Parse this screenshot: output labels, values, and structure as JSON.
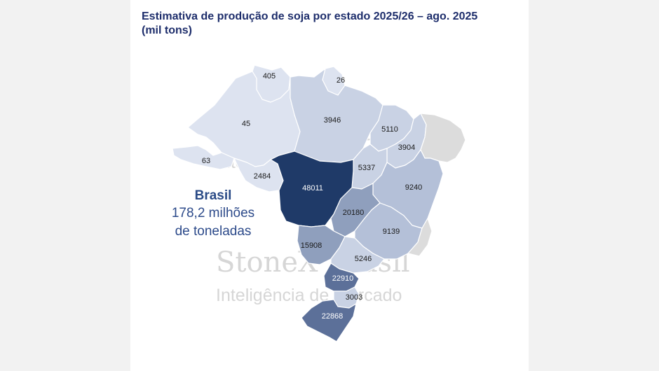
{
  "title": {
    "line1": "Estimativa de produção de soja por estado 2025/26 – ago. 2025",
    "line2": "(mil tons)"
  },
  "summary": {
    "country": "Brasil",
    "line1": "178,2 milhões",
    "line2": "de toneladas"
  },
  "watermark": {
    "brand": "StoneX Brasil",
    "subtitle": "Inteligência de Mercado"
  },
  "colors": {
    "darkest": "#1f3a68",
    "dark": "#5c7099",
    "medium": "#8f9fbd",
    "light": "#b4c0d8",
    "lighter": "#c9d2e4",
    "lightest": "#dde3f0",
    "no_data": "#dcdcdc",
    "title": "#1d2d6b"
  },
  "states": {
    "roraima": "405",
    "amapa": "26",
    "amazonas": "45",
    "para": "3946",
    "maranhao": "5110",
    "piaui": "3904",
    "acre": "63",
    "rondonia": "2484",
    "tocantins": "5337",
    "mato_grosso": "48011",
    "bahia": "9240",
    "goias": "20180",
    "minas_gerais": "9139",
    "mato_grosso_do_sul": "15908",
    "sao_paulo": "5246",
    "parana": "22910",
    "santa_catarina": "3003",
    "rio_grande_do_sul": "22868"
  }
}
